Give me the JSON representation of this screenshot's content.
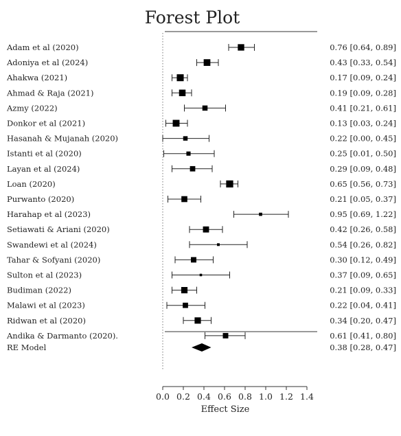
{
  "chart_data": {
    "type": "forest",
    "title": "Forest Plot",
    "xlabel": "Effect Size",
    "xlim": [
      0.0,
      1.4
    ],
    "xticks": [
      "0.0",
      "0.2",
      "0.4",
      "0.6",
      "0.8",
      "1.0",
      "1.2",
      "1.4"
    ],
    "xtick_values": [
      0.0,
      0.2,
      0.4,
      0.6,
      0.8,
      1.0,
      1.2,
      1.4
    ],
    "reference_line": 0,
    "studies": [
      {
        "label": "Adam et al (2020)",
        "est": 0.76,
        "lo": 0.64,
        "hi": 0.89,
        "weight": 5.2,
        "ci_text": "0.76 [0.64, 0.89]"
      },
      {
        "label": "Adoniya et al (2024)",
        "est": 0.43,
        "lo": 0.33,
        "hi": 0.54,
        "weight": 5.4,
        "ci_text": "0.43 [0.33, 0.54]"
      },
      {
        "label": "Ahakwa (2021)",
        "est": 0.17,
        "lo": 0.09,
        "hi": 0.24,
        "weight": 5.6,
        "ci_text": "0.17 [0.09, 0.24]"
      },
      {
        "label": "Ahmad & Raja (2021)",
        "est": 0.19,
        "lo": 0.09,
        "hi": 0.28,
        "weight": 5.3,
        "ci_text": "0.19 [0.09, 0.28]"
      },
      {
        "label": "Azmy (2022)",
        "est": 0.41,
        "lo": 0.21,
        "hi": 0.61,
        "weight": 4.2,
        "ci_text": "0.41 [0.21, 0.61]"
      },
      {
        "label": "Donkor et al (2021)",
        "est": 0.13,
        "lo": 0.03,
        "hi": 0.24,
        "weight": 5.5,
        "ci_text": "0.13 [0.03, 0.24]"
      },
      {
        "label": "Hasanah & Mujanah (2020)",
        "est": 0.22,
        "lo": 0.0,
        "hi": 0.45,
        "weight": 3.6,
        "ci_text": "0.22 [0.00, 0.45]"
      },
      {
        "label": "Istanti et al (2020)",
        "est": 0.25,
        "lo": 0.01,
        "hi": 0.5,
        "weight": 3.4,
        "ci_text": "0.25 [0.01, 0.50]"
      },
      {
        "label": "Layan et al (2024)",
        "est": 0.29,
        "lo": 0.09,
        "hi": 0.48,
        "weight": 4.3,
        "ci_text": "0.29 [0.09, 0.48]"
      },
      {
        "label": "Loan (2020)",
        "est": 0.65,
        "lo": 0.56,
        "hi": 0.73,
        "weight": 5.7,
        "ci_text": "0.65 [0.56, 0.73]"
      },
      {
        "label": "Purwanto (2020)",
        "est": 0.21,
        "lo": 0.05,
        "hi": 0.37,
        "weight": 4.8,
        "ci_text": "0.21 [0.05, 0.37]"
      },
      {
        "label": "Harahap et al (2023)",
        "est": 0.95,
        "lo": 0.69,
        "hi": 1.22,
        "weight": 2.6,
        "ci_text": "0.95 [0.69, 1.22]"
      },
      {
        "label": "Setiawati & Ariani (2020)",
        "est": 0.42,
        "lo": 0.26,
        "hi": 0.58,
        "weight": 4.9,
        "ci_text": "0.42 [0.26, 0.58]"
      },
      {
        "label": "Swandewi et al (2024)",
        "est": 0.54,
        "lo": 0.26,
        "hi": 0.82,
        "weight": 2.2,
        "ci_text": "0.54 [0.26, 0.82]"
      },
      {
        "label": "Tahar & Sofyani (2020)",
        "est": 0.3,
        "lo": 0.12,
        "hi": 0.49,
        "weight": 4.4,
        "ci_text": "0.30 [0.12, 0.49]"
      },
      {
        "label": "Sulton et al (2023)",
        "est": 0.37,
        "lo": 0.09,
        "hi": 0.65,
        "weight": 2.0,
        "ci_text": "0.37 [0.09, 0.65]"
      },
      {
        "label": "Budiman (2022)",
        "est": 0.21,
        "lo": 0.09,
        "hi": 0.33,
        "weight": 5.1,
        "ci_text": "0.21 [0.09, 0.33]"
      },
      {
        "label": "Malawi et al (2023)",
        "est": 0.22,
        "lo": 0.04,
        "hi": 0.41,
        "weight": 4.3,
        "ci_text": "0.22 [0.04, 0.41]"
      },
      {
        "label": "Ridwan et al (2020)",
        "est": 0.34,
        "lo": 0.2,
        "hi": 0.47,
        "weight": 5.1,
        "ci_text": "0.34 [0.20, 0.47]"
      },
      {
        "label": "Andika & Darmanto (2020).",
        "est": 0.61,
        "lo": 0.41,
        "hi": 0.8,
        "weight": 4.4,
        "ci_text": "0.61 [0.41, 0.80]"
      }
    ],
    "summary": {
      "label": "RE Model",
      "est": 0.38,
      "lo": 0.28,
      "hi": 0.47,
      "ci_text": "0.38 [0.28, 0.47]"
    }
  }
}
